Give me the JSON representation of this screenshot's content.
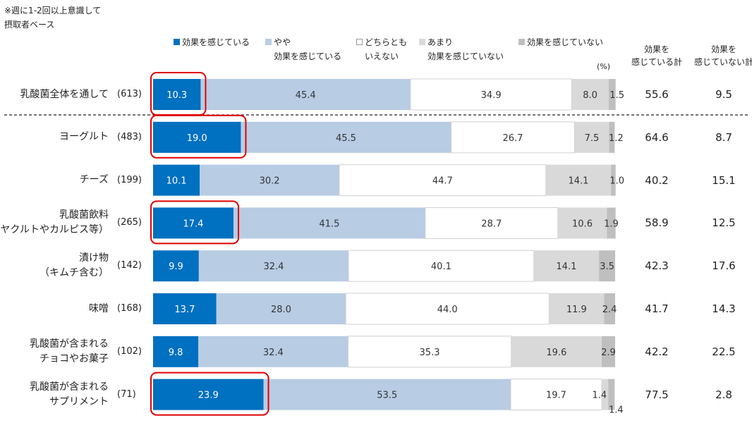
{
  "note": {
    "line1": "※週に1-2回以上意識して",
    "line2": "摂取者ベース"
  },
  "legend": {
    "items": [
      {
        "key": "l0",
        "line1": "効果を感じている",
        "line2": "",
        "color": "#0070c0"
      },
      {
        "key": "l1",
        "line1": "やや",
        "line2": "効果を感じている",
        "color": "#b8cce4"
      },
      {
        "key": "l2",
        "line1": "どちらとも",
        "line2": "いえない",
        "color": "#ffffff"
      },
      {
        "key": "l3",
        "line1": "あまり",
        "line2": "効果を感じていない",
        "color": "#d9d9d9"
      },
      {
        "key": "l4",
        "line1": "効果を感じていない",
        "line2": "",
        "color": "#bfbfbf"
      }
    ]
  },
  "unit_label": "(%)",
  "summary_headers": {
    "col1_line1": "効果を",
    "col1_line2": "感じている計",
    "col2_line1": "効果を",
    "col2_line2": "感じていない計"
  },
  "chart_data": {
    "type": "bar",
    "orientation": "horizontal",
    "stacked": true,
    "xlim": [
      0,
      100
    ],
    "categories": [
      {
        "line1": "乳酸菌全体を通して",
        "line2": "",
        "n": "(613)",
        "values": [
          10.3,
          45.4,
          34.9,
          8.0,
          1.5
        ],
        "labels": [
          "10.3",
          "45.4",
          "34.9",
          "8.0",
          "1.5"
        ],
        "sum_effect": "55.6",
        "sum_no_effect": "9.5",
        "highlight": true
      },
      {
        "line1": "ヨーグルト",
        "line2": "",
        "n": "(483)",
        "values": [
          19.0,
          45.5,
          26.7,
          7.5,
          1.2
        ],
        "labels": [
          "19.0",
          "45.5",
          "26.7",
          "7.5",
          "1.2"
        ],
        "sum_effect": "64.6",
        "sum_no_effect": "8.7",
        "highlight": true
      },
      {
        "line1": "チーズ",
        "line2": "",
        "n": "(199)",
        "values": [
          10.1,
          30.2,
          44.7,
          14.1,
          1.0
        ],
        "labels": [
          "10.1",
          "30.2",
          "44.7",
          "14.1",
          "1.0"
        ],
        "sum_effect": "40.2",
        "sum_no_effect": "15.1",
        "highlight": false
      },
      {
        "line1": "乳酸菌飲料",
        "line2": "（ヤクルトやカルピス等）",
        "n": "(265)",
        "values": [
          17.4,
          41.5,
          28.7,
          10.6,
          1.9
        ],
        "labels": [
          "17.4",
          "41.5",
          "28.7",
          "10.6",
          "1.9"
        ],
        "sum_effect": "58.9",
        "sum_no_effect": "12.5",
        "highlight": true
      },
      {
        "line1": "漬け物",
        "line2": "（キムチ含む）",
        "n": "(142)",
        "values": [
          9.9,
          32.4,
          40.1,
          14.1,
          3.5
        ],
        "labels": [
          "9.9",
          "32.4",
          "40.1",
          "14.1",
          "3.5"
        ],
        "sum_effect": "42.3",
        "sum_no_effect": "17.6",
        "highlight": false
      },
      {
        "line1": "味噌",
        "line2": "",
        "n": "(168)",
        "values": [
          13.7,
          28.0,
          44.0,
          11.9,
          2.4
        ],
        "labels": [
          "13.7",
          "28.0",
          "44.0",
          "11.9",
          "2.4"
        ],
        "sum_effect": "41.7",
        "sum_no_effect": "14.3",
        "highlight": false
      },
      {
        "line1": "乳酸菌が含まれる",
        "line2": "チョコやお菓子",
        "n": "(102)",
        "values": [
          9.8,
          32.4,
          35.3,
          19.6,
          2.9
        ],
        "labels": [
          "9.8",
          "32.4",
          "35.3",
          "19.6",
          "2.9"
        ],
        "sum_effect": "42.2",
        "sum_no_effect": "22.5",
        "highlight": false
      },
      {
        "line1": "乳酸菌が含まれる",
        "line2": "サプリメント",
        "n": "(71)",
        "values": [
          23.9,
          53.5,
          19.7,
          1.4,
          1.4
        ],
        "labels": [
          "23.9",
          "53.5",
          "19.7",
          "1.4",
          "1.4"
        ],
        "sum_effect": "77.5",
        "sum_no_effect": "2.8",
        "highlight": true
      }
    ],
    "segment_colors": [
      "#0070c0",
      "#b8cce4",
      "#ffffff",
      "#d9d9d9",
      "#bfbfbf"
    ],
    "segment_label_colors": [
      "#ffffff",
      "#333333",
      "#333333",
      "#333333",
      "#333333"
    ],
    "highlight_color": "#e00000",
    "separator_after_first_row": true,
    "grid": false
  }
}
